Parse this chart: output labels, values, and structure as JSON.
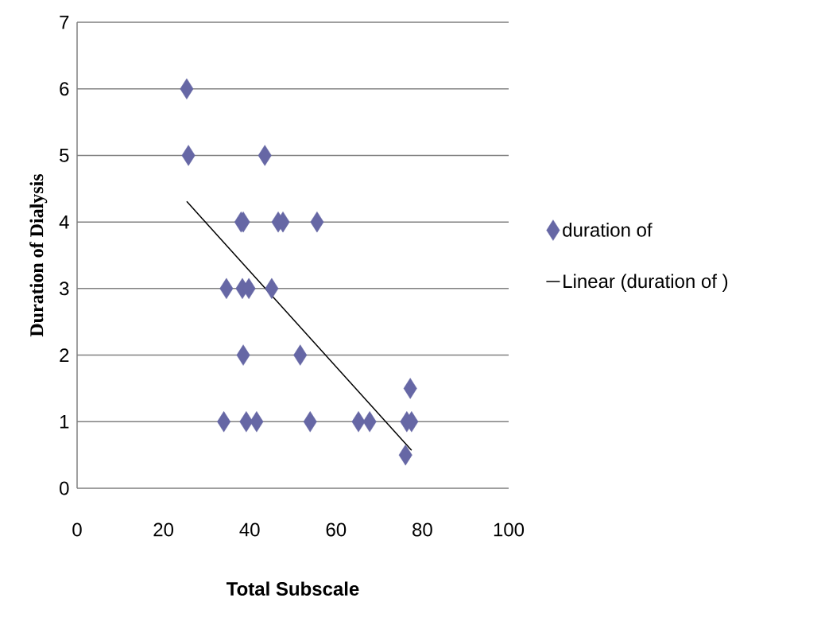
{
  "chart_data": {
    "type": "scatter",
    "xlabel": "Total Subscale",
    "ylabel": "Duration of Dialysis",
    "xlim": [
      0,
      100
    ],
    "ylim": [
      0,
      7
    ],
    "xticks": [
      0,
      20,
      40,
      60,
      80,
      100
    ],
    "yticks": [
      0,
      1,
      2,
      3,
      4,
      5,
      6,
      7
    ],
    "grid": "y",
    "legend": "right",
    "series": [
      {
        "name": "duration of",
        "marker": "diamond",
        "color": "#6667a5",
        "x": [
          25.4,
          25.8,
          43.5,
          38,
          38.5,
          46.6,
          47.7,
          55.6,
          34.6,
          38.3,
          39.8,
          45.1,
          38.5,
          51.7,
          34,
          39.2,
          41.6,
          54,
          65.2,
          67.8,
          76.4,
          77.5,
          77.2,
          76.1
        ],
        "values": [
          6,
          5,
          5,
          4,
          4,
          4,
          4,
          4,
          3,
          3,
          3,
          3,
          2,
          2,
          1,
          1,
          1,
          1,
          1,
          1,
          1,
          1,
          1.5,
          0.5
        ]
      },
      {
        "name": "Linear (duration of )",
        "type": "line",
        "marker": "none",
        "color": "#000000",
        "x": [
          25.4,
          77.5
        ],
        "values": [
          4.31,
          0.57
        ]
      }
    ]
  }
}
